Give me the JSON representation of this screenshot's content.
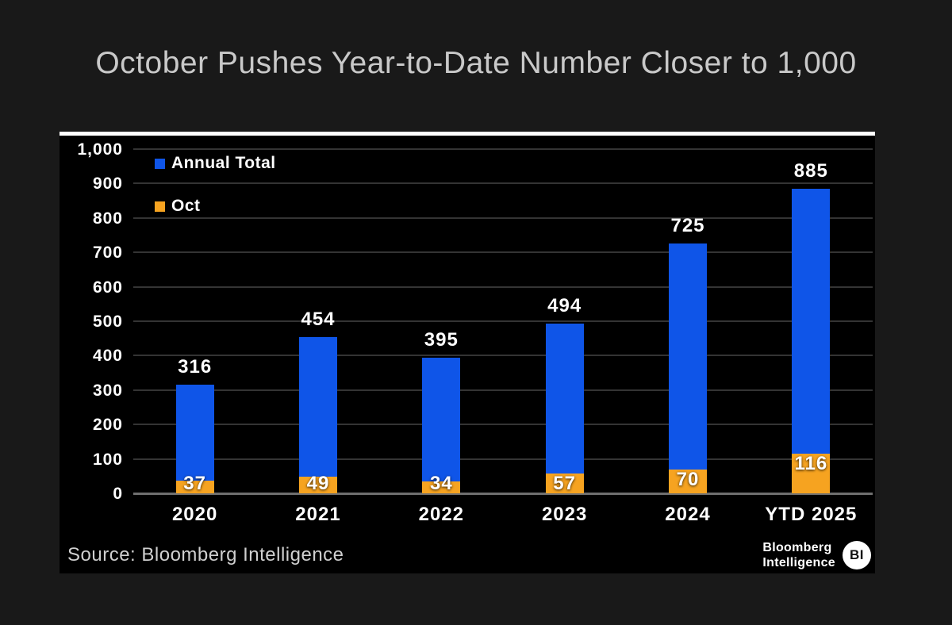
{
  "chart_data": {
    "type": "bar",
    "stacked": true,
    "title": "October Pushes Year-to-Date Number Closer to 1,000",
    "categories": [
      "2020",
      "2021",
      "2022",
      "2023",
      "2024",
      "YTD 2025"
    ],
    "series": [
      {
        "name": "Annual Total",
        "color": "#0f55e8",
        "values": [
          316,
          454,
          395,
          494,
          725,
          885
        ]
      },
      {
        "name": "Oct",
        "color": "#f6a320",
        "values": [
          37,
          49,
          34,
          57,
          70,
          116
        ]
      }
    ],
    "note": "Oct values are the bottom (orange) portion included within each Annual Total bar",
    "yticks": [
      0,
      100,
      200,
      300,
      400,
      500,
      600,
      700,
      800,
      900,
      1000
    ],
    "ylim": [
      0,
      1000
    ],
    "grid": "horizontal",
    "legend_position": "top-left",
    "xlabel": "",
    "ylabel": ""
  },
  "source": {
    "label": "Source: Bloomberg Intelligence"
  },
  "branding": {
    "line1": "Bloomberg",
    "line2": "Intelligence",
    "badge": "BI"
  },
  "colors": {
    "annual_total": "#0f55e8",
    "oct": "#f6a320",
    "panel_background": "#000000",
    "page_background": "#191919",
    "title_text": "#c9c9c9",
    "axis_text": "#ffffff",
    "gridline": "#343434",
    "zero_line": "#6f6f6f"
  }
}
